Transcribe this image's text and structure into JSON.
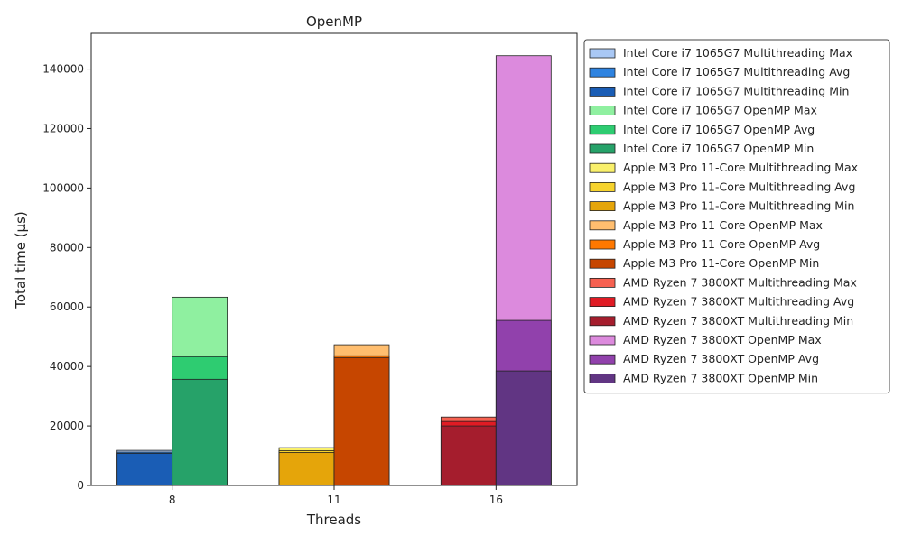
{
  "chart_data": {
    "type": "bar",
    "title": "OpenMP",
    "xlabel": "Threads",
    "ylabel": "Total time (µs)",
    "categories": [
      "8",
      "11",
      "16"
    ],
    "ylim": [
      0,
      152000
    ],
    "yticks": [
      0,
      20000,
      40000,
      60000,
      80000,
      100000,
      120000,
      140000
    ],
    "legend_position": "outside-right",
    "series": [
      {
        "name": "Intel Core i7 1065G7 Multithreading Max",
        "color": "#a9c8f5",
        "group": "Intel Core i7 1065G7 Multithreading",
        "category": "8",
        "value": 11800
      },
      {
        "name": "Intel Core i7 1065G7 Multithreading Avg",
        "color": "#2e83e0",
        "group": "Intel Core i7 1065G7 Multithreading",
        "category": "8",
        "value": 11200
      },
      {
        "name": "Intel Core i7 1065G7 Multithreading Min",
        "color": "#1a5db5",
        "group": "Intel Core i7 1065G7 Multithreading",
        "category": "8",
        "value": 10800
      },
      {
        "name": "Intel Core i7 1065G7 OpenMP Max",
        "color": "#8ff0a0",
        "group": "Intel Core i7 1065G7 OpenMP",
        "category": "8",
        "value": 63300
      },
      {
        "name": "Intel Core i7 1065G7 OpenMP Avg",
        "color": "#2ecc71",
        "group": "Intel Core i7 1065G7 OpenMP",
        "category": "8",
        "value": 43300
      },
      {
        "name": "Intel Core i7 1065G7 OpenMP Min",
        "color": "#26a269",
        "group": "Intel Core i7 1065G7 OpenMP",
        "category": "8",
        "value": 35700
      },
      {
        "name": "Apple M3 Pro 11-Core Multithreading Max",
        "color": "#f9f06b",
        "group": "Apple M3 Pro 11-Core Multithreading",
        "category": "11",
        "value": 12700
      },
      {
        "name": "Apple M3 Pro 11-Core Multithreading Avg",
        "color": "#f6d32d",
        "group": "Apple M3 Pro 11-Core Multithreading",
        "category": "11",
        "value": 11700
      },
      {
        "name": "Apple M3 Pro 11-Core Multithreading Min",
        "color": "#e5a50a",
        "group": "Apple M3 Pro 11-Core Multithreading",
        "category": "11",
        "value": 11100
      },
      {
        "name": "Apple M3 Pro 11-Core OpenMP Max",
        "color": "#ffbe6f",
        "group": "Apple M3 Pro 11-Core OpenMP",
        "category": "11",
        "value": 47300
      },
      {
        "name": "Apple M3 Pro 11-Core OpenMP Avg",
        "color": "#ff7800",
        "group": "Apple M3 Pro 11-Core OpenMP",
        "category": "11",
        "value": 43600
      },
      {
        "name": "Apple M3 Pro 11-Core OpenMP Min",
        "color": "#c64600",
        "group": "Apple M3 Pro 11-Core OpenMP",
        "category": "11",
        "value": 43000
      },
      {
        "name": "AMD Ryzen 7 3800XT Multithreading Max",
        "color": "#f66151",
        "group": "AMD Ryzen 7 3800XT Multithreading",
        "category": "16",
        "value": 23000
      },
      {
        "name": "AMD Ryzen 7 3800XT Multithreading Avg",
        "color": "#e01b24",
        "group": "AMD Ryzen 7 3800XT Multithreading",
        "category": "16",
        "value": 21500
      },
      {
        "name": "AMD Ryzen 7 3800XT Multithreading Min",
        "color": "#a51d2d",
        "group": "AMD Ryzen 7 3800XT Multithreading",
        "category": "16",
        "value": 20000
      },
      {
        "name": "AMD Ryzen 7 3800XT OpenMP Max",
        "color": "#dc8add",
        "group": "AMD Ryzen 7 3800XT OpenMP",
        "category": "16",
        "value": 144500
      },
      {
        "name": "AMD Ryzen 7 3800XT OpenMP Avg",
        "color": "#9141ac",
        "group": "AMD Ryzen 7 3800XT OpenMP",
        "category": "16",
        "value": 55500
      },
      {
        "name": "AMD Ryzen 7 3800XT OpenMP Min",
        "color": "#613583",
        "group": "AMD Ryzen 7 3800XT OpenMP",
        "category": "16",
        "value": 38500
      }
    ]
  }
}
